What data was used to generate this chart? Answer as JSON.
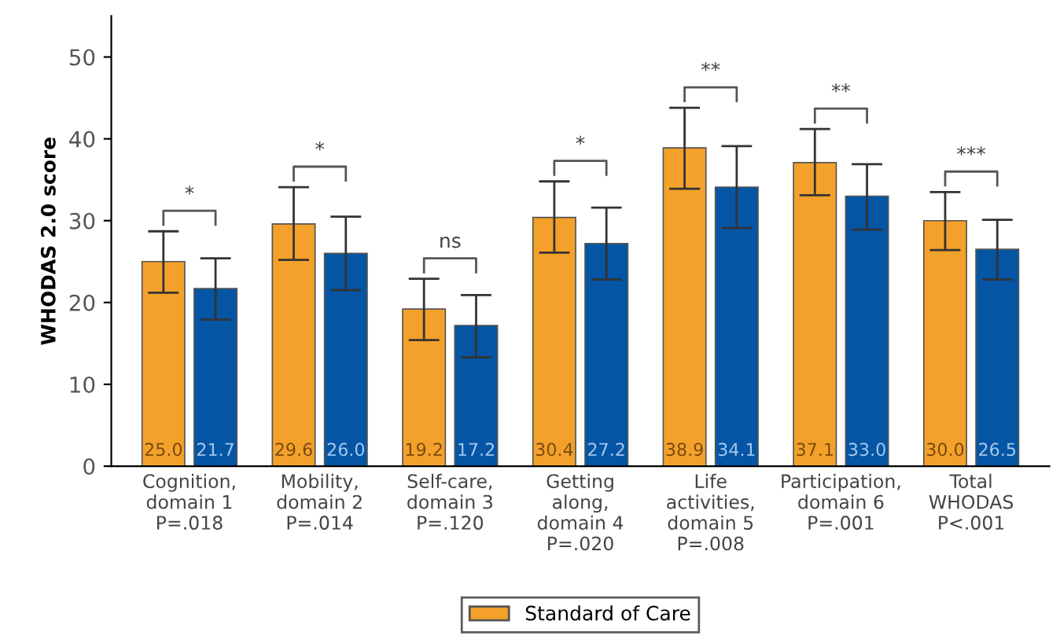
{
  "chart_data": {
    "type": "bar",
    "ylabel": "WHODAS 2.0 score",
    "categories": [
      "Cognition,\ndomain 1\nP=.018",
      "Mobility,\ndomain 2\nP=.014",
      "Self-care,\ndomain 3\nP=.120",
      "Getting\nalong,\ndomain 4\nP=.020",
      "Life\nactivities,\ndomain 5\nP=.008",
      "Participation,\ndomain 6\nP=.001",
      "Total\nWHODAS\nP<.001"
    ],
    "series": [
      {
        "name": "Standard of Care",
        "color": "#f3a12a",
        "values": [
          25.0,
          29.6,
          19.2,
          30.4,
          38.9,
          37.1,
          30.0
        ],
        "value_labels": [
          "25.0",
          "29.6",
          "19.2",
          "30.4",
          "38.9",
          "37.1",
          "30.0"
        ],
        "errors": [
          [
            21.2,
            28.7
          ],
          [
            25.2,
            34.1
          ],
          [
            15.4,
            22.9
          ],
          [
            26.1,
            34.8
          ],
          [
            33.9,
            43.8
          ],
          [
            33.1,
            41.2
          ],
          [
            26.4,
            33.5
          ]
        ]
      },
      {
        "color": "#0456a5",
        "values": [
          21.7,
          26.0,
          17.2,
          27.2,
          34.1,
          33.0,
          26.5
        ],
        "value_labels": [
          "21.7",
          "26.0",
          "17.2",
          "27.2",
          "34.1",
          "33.0",
          "26.5"
        ],
        "errors": [
          [
            17.9,
            25.4
          ],
          [
            21.5,
            30.5
          ],
          [
            13.3,
            20.9
          ],
          [
            22.8,
            31.6
          ],
          [
            29.1,
            39.1
          ],
          [
            28.9,
            36.9
          ],
          [
            22.8,
            30.1
          ]
        ]
      }
    ],
    "annotations": [
      "*",
      "*",
      "ns",
      "*",
      "**",
      "**",
      "***"
    ],
    "ylim": [
      0,
      55
    ],
    "yticks": [
      0,
      10,
      20,
      30,
      40,
      50
    ],
    "grid": false,
    "legend": "bottom"
  }
}
